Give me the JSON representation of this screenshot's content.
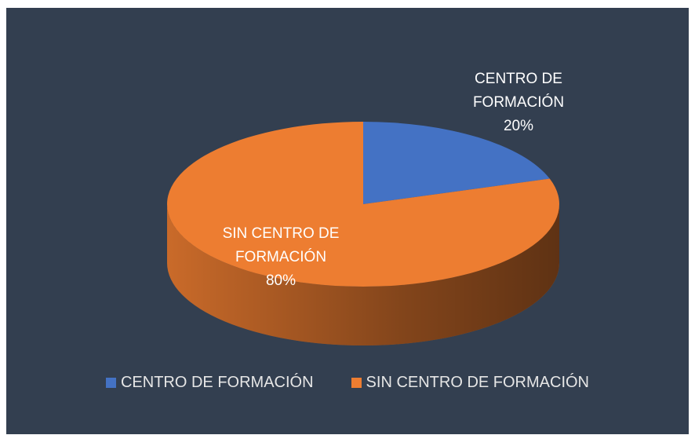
{
  "chart_data": {
    "type": "pie",
    "categories": [
      "CENTRO DE FORMACIÓN",
      "SIN CENTRO DE FORMACIÓN"
    ],
    "values": [
      20,
      80
    ],
    "value_labels": [
      "20%",
      "80%"
    ],
    "colors": [
      "#4472c4",
      "#ed7d31"
    ],
    "legend": "bottom"
  }
}
